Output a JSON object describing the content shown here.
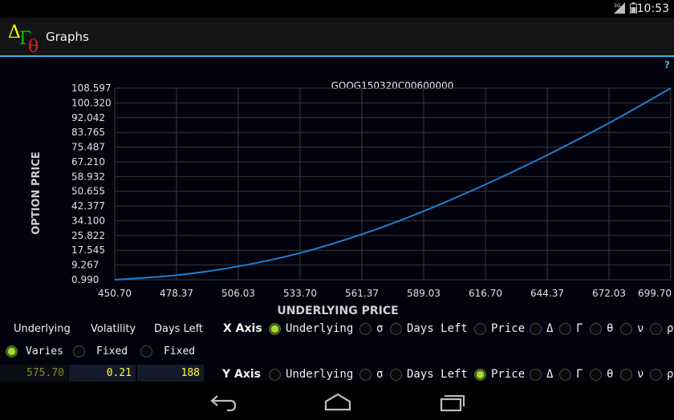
{
  "status": {
    "time": "10:53",
    "signal": "3G"
  },
  "app": {
    "title": "Graphs",
    "logo_glyphs": [
      "Δ",
      "Γ",
      "θ"
    ]
  },
  "help": "?",
  "chart_data": {
    "type": "line",
    "title": "GOOG150320C00600000",
    "xlabel": "UNDERLYING PRICE",
    "ylabel": "OPTION PRICE",
    "xlim": [
      450.7,
      699.7
    ],
    "ylim": [
      0.99,
      108.597
    ],
    "x_ticks": [
      "450.70",
      "478.37",
      "506.03",
      "533.70",
      "561.37",
      "589.03",
      "616.70",
      "644.37",
      "672.03",
      "699.70"
    ],
    "y_ticks": [
      "108.597",
      "100.320",
      "92.042",
      "83.765",
      "75.487",
      "67.210",
      "58.932",
      "50.655",
      "42.377",
      "34.100",
      "25.822",
      "17.545",
      "9.267",
      "0.990"
    ],
    "grid": true,
    "color": "#1e7fd0",
    "series": [
      {
        "x": [
          450.7,
          478.37,
          506.03,
          533.7,
          561.37,
          589.03,
          616.7,
          644.37,
          672.03,
          699.7
        ],
        "y": [
          0.99,
          3.5,
          8.5,
          16.0,
          26.5,
          39.5,
          54.5,
          71.0,
          89.0,
          108.597
        ]
      }
    ]
  },
  "controls": {
    "headers": {
      "underlying": "Underlying",
      "volatility": "Volatility",
      "days_left": "Days Left"
    },
    "mode": {
      "varies": "Varies",
      "fixed1": "Fixed",
      "fixed2": "Fixed"
    },
    "values": {
      "underlying": "575.70",
      "volatility": "0.21",
      "days_left": "188"
    },
    "x_axis": {
      "title": "X Axis",
      "options": [
        "Underlying",
        "σ",
        "Days Left",
        "Price",
        "Δ",
        "Γ",
        "θ",
        "ν",
        "ρ"
      ],
      "selected": "Underlying"
    },
    "y_axis": {
      "title": "Y Axis",
      "options": [
        "Underlying",
        "σ",
        "Days Left",
        "Price",
        "Δ",
        "Γ",
        "θ",
        "ν",
        "ρ"
      ],
      "selected": "Price"
    },
    "colors": {
      "selected_radio": "#a6d83a",
      "value_text": "#ffff33",
      "dim_value_text": "#8a8a2a"
    }
  },
  "nav": {
    "back": "back-icon",
    "home": "home-icon",
    "recents": "recents-icon"
  }
}
